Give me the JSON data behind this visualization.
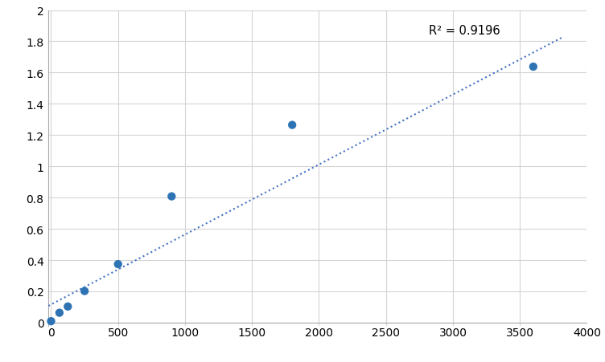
{
  "x": [
    0,
    62.5,
    125,
    250,
    500,
    900,
    1800,
    3600
  ],
  "y": [
    0.009,
    0.063,
    0.103,
    0.202,
    0.374,
    0.808,
    1.265,
    1.638
  ],
  "trendline_x": [
    -20,
    3820
  ],
  "trendline_y": [
    0.107,
    1.827
  ],
  "r_squared": "R² = 0.9196",
  "r2_x": 2820,
  "r2_y": 1.87,
  "dot_color": "#2E74B5",
  "trendline_color": "#4472C4",
  "marker_size": 55,
  "xlim": [
    -20,
    4000
  ],
  "ylim": [
    -0.02,
    2.0
  ],
  "xticks": [
    0,
    500,
    1000,
    1500,
    2000,
    2500,
    3000,
    3500,
    4000
  ],
  "yticks": [
    0,
    0.2,
    0.4,
    0.6,
    0.8,
    1.0,
    1.2,
    1.4,
    1.6,
    1.8,
    2.0
  ],
  "background_color": "#ffffff",
  "grid_color": "#d4d4d4",
  "tick_label_fontsize": 10,
  "annotation_fontsize": 10.5
}
